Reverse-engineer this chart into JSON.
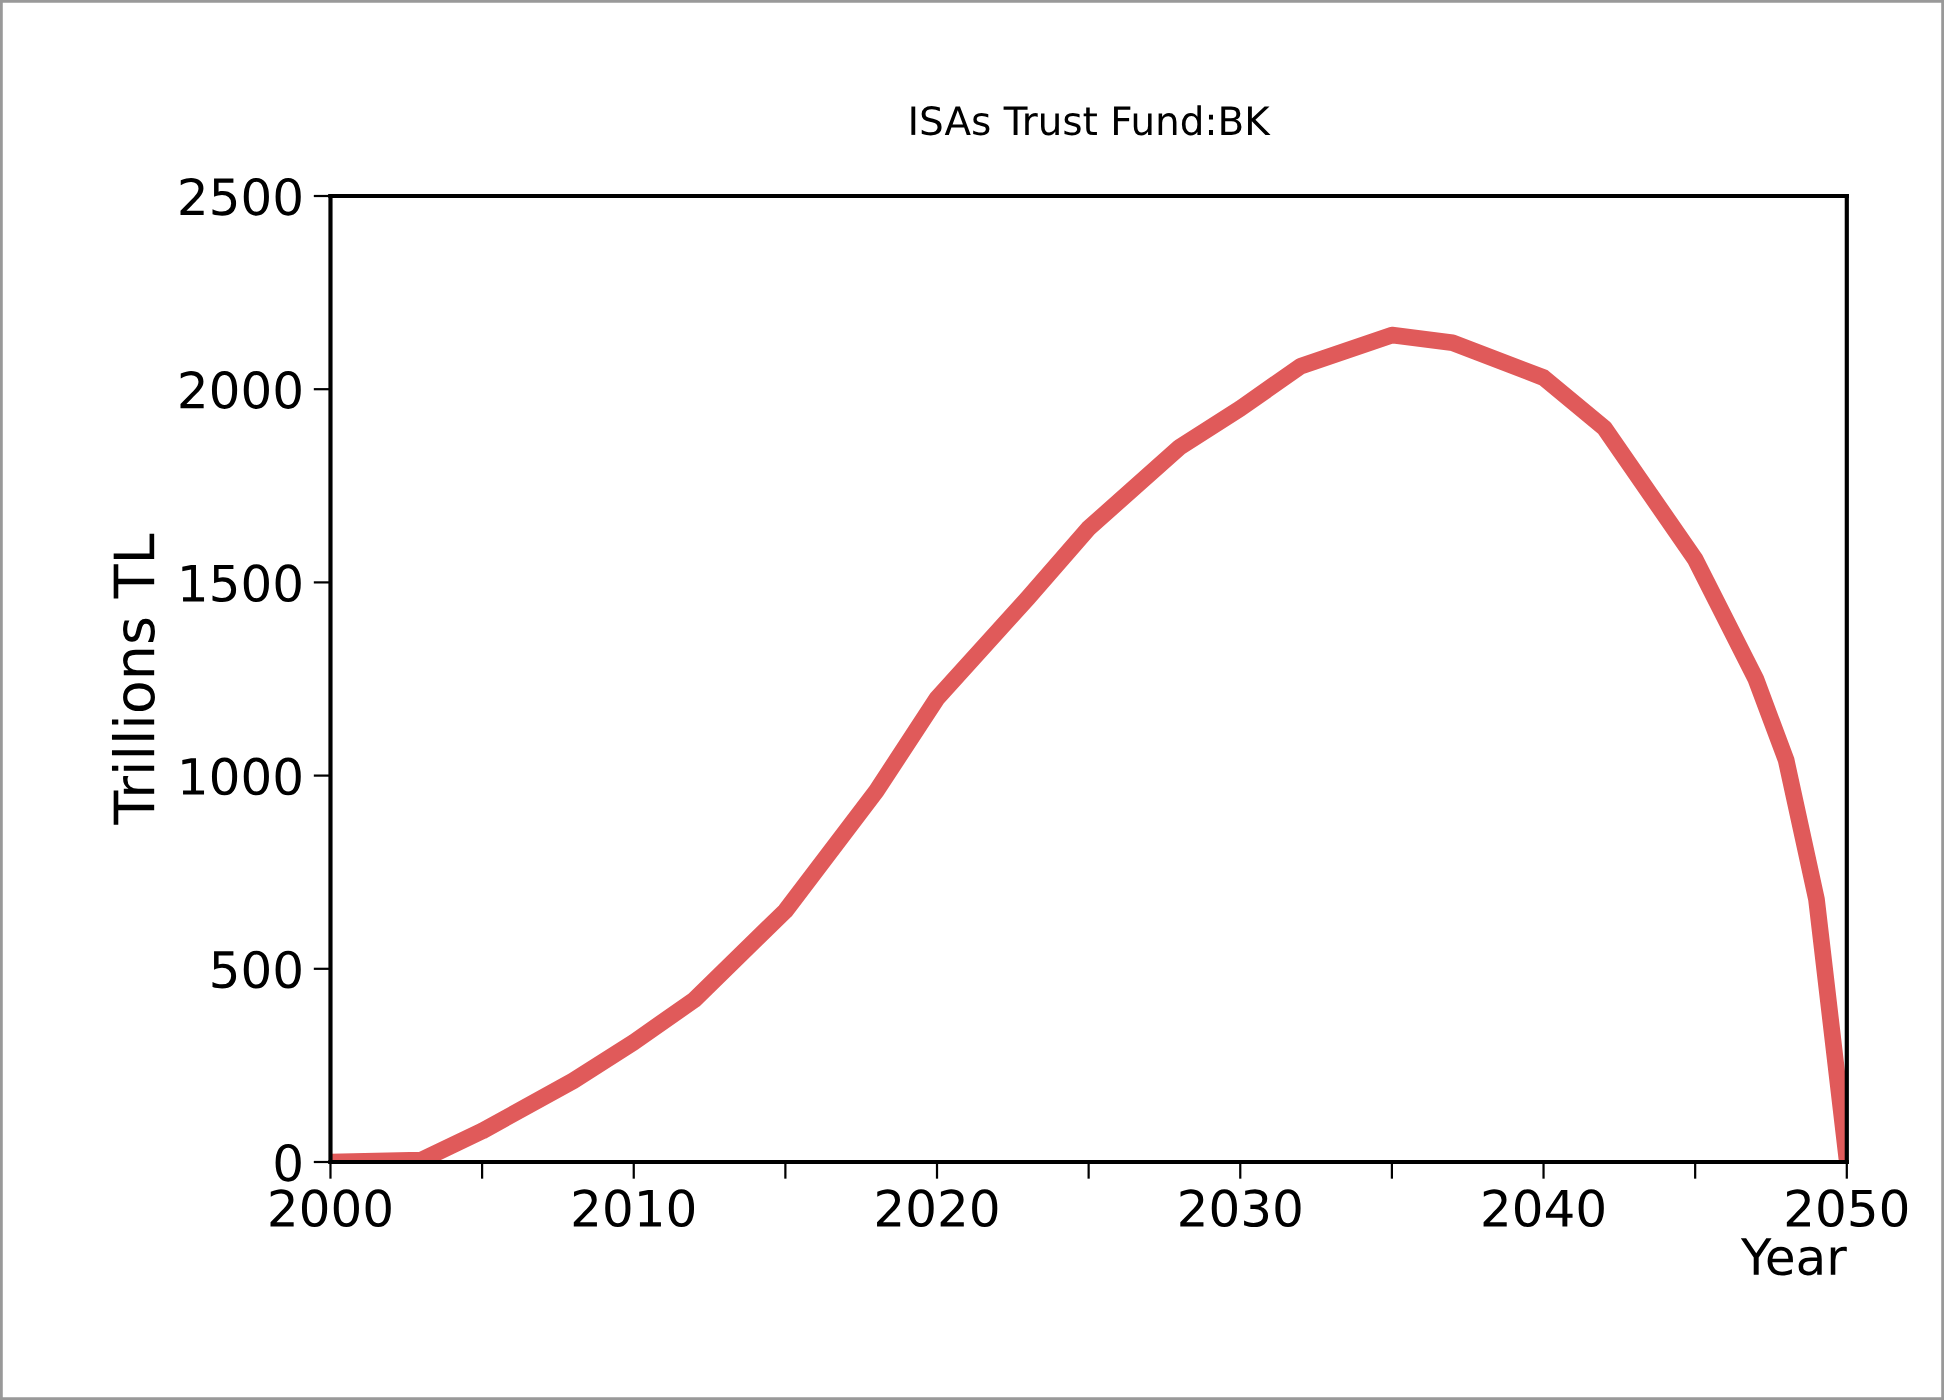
{
  "chart_data": {
    "type": "line",
    "title": "ISAs Trust Fund:BK",
    "xlabel": "Year",
    "ylabel": "Trillions TL",
    "x": [
      2000,
      2003,
      2005,
      2008,
      2010,
      2012,
      2015,
      2018,
      2020,
      2023,
      2025,
      2028,
      2030,
      2032,
      2035,
      2037,
      2040,
      2042,
      2045,
      2047,
      2048,
      2049,
      2050
    ],
    "series": [
      {
        "color": "#e05a5a",
        "values": [
          0,
          5,
          80,
          210,
          310,
          420,
          650,
          960,
          1200,
          1460,
          1640,
          1850,
          1950,
          2060,
          2140,
          2120,
          2030,
          1900,
          1560,
          1250,
          1040,
          680,
          10
        ]
      }
    ],
    "xlim": [
      2000,
      2050
    ],
    "xticks": [
      2000,
      {
        "value": 2005,
        "label": null
      },
      2010,
      {
        "value": 2015,
        "label": null
      },
      2020,
      {
        "value": 2025,
        "label": null
      },
      2030,
      {
        "value": 2035,
        "label": null
      },
      2040,
      {
        "value": 2045,
        "label": null
      },
      2050
    ],
    "ylim": [
      0,
      2500
    ],
    "yticks": [
      0,
      500,
      1000,
      1500,
      2000,
      2500
    ],
    "grid": false,
    "legend": false,
    "marker": "none",
    "line_style": "solid"
  }
}
